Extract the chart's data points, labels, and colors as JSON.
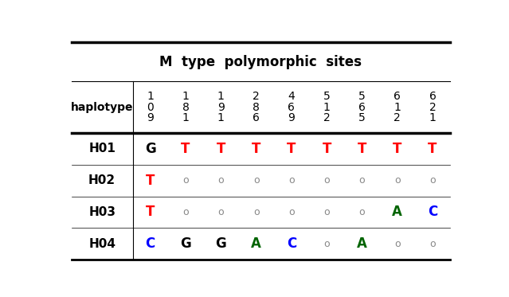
{
  "title": "M  type  polymorphic  sites",
  "col_headers": [
    [
      "1",
      "0",
      "9"
    ],
    [
      "1",
      "8",
      "1"
    ],
    [
      "1",
      "9",
      "1"
    ],
    [
      "2",
      "8",
      "6"
    ],
    [
      "4",
      "6",
      "9"
    ],
    [
      "5",
      "1",
      "2"
    ],
    [
      "5",
      "6",
      "5"
    ],
    [
      "6",
      "1",
      "2"
    ],
    [
      "6",
      "2",
      "1"
    ]
  ],
  "row_headers": [
    "haplotype",
    "H01",
    "H02",
    "H03",
    "H04"
  ],
  "table_data": [
    [
      [
        "G",
        "black"
      ],
      [
        "T",
        "red"
      ],
      [
        "T",
        "red"
      ],
      [
        "T",
        "red"
      ],
      [
        "T",
        "red"
      ],
      [
        "T",
        "red"
      ],
      [
        "T",
        "red"
      ],
      [
        "T",
        "red"
      ],
      [
        "T",
        "red"
      ]
    ],
    [
      [
        "T",
        "red"
      ],
      [
        "o",
        "#888888"
      ],
      [
        "o",
        "#888888"
      ],
      [
        "o",
        "#888888"
      ],
      [
        "o",
        "#888888"
      ],
      [
        "o",
        "#888888"
      ],
      [
        "o",
        "#888888"
      ],
      [
        "o",
        "#888888"
      ],
      [
        "o",
        "#888888"
      ]
    ],
    [
      [
        "T",
        "red"
      ],
      [
        "o",
        "#888888"
      ],
      [
        "o",
        "#888888"
      ],
      [
        "o",
        "#888888"
      ],
      [
        "o",
        "#888888"
      ],
      [
        "o",
        "#888888"
      ],
      [
        "o",
        "#888888"
      ],
      [
        "A",
        "darkgreen"
      ],
      [
        "C",
        "blue"
      ]
    ],
    [
      [
        "C",
        "blue"
      ],
      [
        "G",
        "black"
      ],
      [
        "G",
        "black"
      ],
      [
        "A",
        "darkgreen"
      ],
      [
        "C",
        "blue"
      ],
      [
        "o",
        "#888888"
      ],
      [
        "A",
        "darkgreen"
      ],
      [
        "o",
        "#888888"
      ],
      [
        "o",
        "#888888"
      ]
    ]
  ],
  "bg_color": "#ffffff"
}
